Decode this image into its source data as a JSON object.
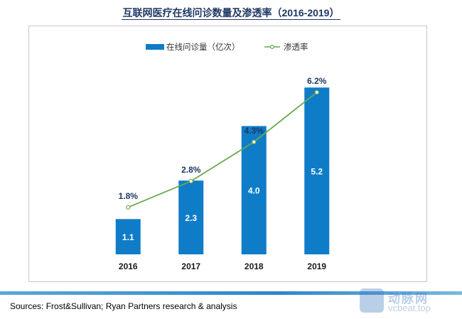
{
  "title": "互联网医疗在线问诊数量及渗透率（2016-2019）",
  "chart_data": {
    "type": "bar",
    "title": "互联网医疗在线问诊数量及渗透率（2016-2019）",
    "categories": [
      "2016",
      "2017",
      "2018",
      "2019"
    ],
    "series": [
      {
        "name": "在线问诊量（亿次）",
        "type": "bar",
        "values": [
          1.1,
          2.3,
          4.0,
          5.2
        ],
        "labels": [
          "1.1",
          "2.3",
          "4.0",
          "5.2"
        ]
      },
      {
        "name": "渗透率",
        "type": "line",
        "values": [
          1.8,
          2.8,
          4.3,
          6.2
        ],
        "labels": [
          "1.8%",
          "2.8%",
          "4.3%",
          "6.2%"
        ]
      }
    ],
    "legend_position": "top-center",
    "grid": false,
    "bar_ylim": [
      0,
      6.6
    ],
    "line_ylim": [
      0,
      8.1
    ]
  },
  "colors": {
    "bar": "#0f7cc8",
    "line": "#6aa84f",
    "title": "#1f3864",
    "bar_label": "#ffffff",
    "line_label": "#1f3864"
  },
  "source": "Sources: Frost&Sullivan; Ryan Partners research & analysis",
  "watermark": {
    "line1": "动脉网",
    "line2": "vcbeat.top",
    "logo_icon": "vb-logo-icon"
  }
}
